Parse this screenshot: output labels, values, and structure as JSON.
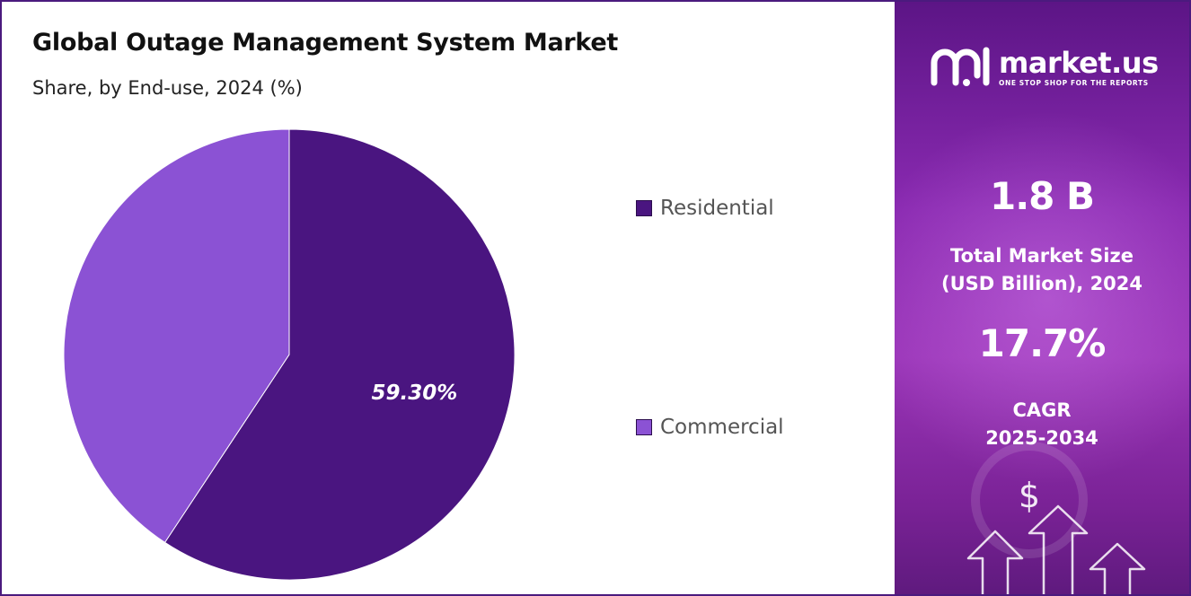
{
  "chart_data": {
    "type": "pie",
    "title": "Global Outage Management System Market",
    "subtitle": "Share, by End-use, 2024 (%)",
    "slices": [
      {
        "label": "Residential",
        "value": 59.3,
        "color": "#4a1580",
        "data_label": "59.30%"
      },
      {
        "label": "Commercial",
        "value": 40.7,
        "color": "#8b52d4",
        "data_label": ""
      }
    ],
    "legend_placement": "right"
  },
  "brand": {
    "name": "market.us",
    "tagline": "ONE STOP SHOP FOR THE REPORTS",
    "icon": "market-us-logo-icon"
  },
  "stats": {
    "market_size_value": "1.8 B",
    "market_size_label_line1": "Total Market Size",
    "market_size_label_line2": "(USD Billion), 2024",
    "cagr_value": "17.7%",
    "cagr_label_line1": "CAGR",
    "cagr_label_line2": "2025-2034"
  },
  "decor": {
    "dollar_symbol": "$",
    "icons": [
      "growth-arrows-icon"
    ]
  }
}
